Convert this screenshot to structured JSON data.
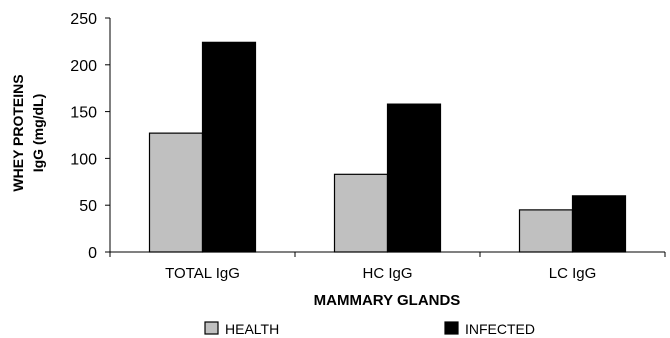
{
  "chart_data": {
    "type": "bar",
    "title": "",
    "xlabel": "MAMMARY GLANDS",
    "ylabel_lines": [
      "WHEY PROTEINS",
      "IgG (mg/dL)"
    ],
    "categories": [
      "TOTAL IgG",
      "HC IgG",
      "LC IgG"
    ],
    "series": [
      {
        "name": "HEALTH",
        "values": [
          127,
          83,
          45
        ],
        "color": "#c0c0c0"
      },
      {
        "name": "INFECTED",
        "values": [
          224,
          158,
          60
        ],
        "color": "#000000"
      }
    ],
    "ylim": [
      0,
      250
    ],
    "yticks": [
      0,
      50,
      100,
      150,
      200,
      250
    ],
    "grid": false,
    "legend_position": "bottom"
  }
}
